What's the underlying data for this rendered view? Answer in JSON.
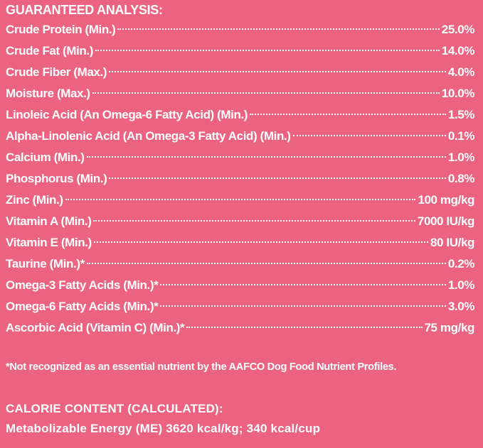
{
  "heading": "GUARANTEED ANALYSIS:",
  "rows": [
    [
      "Crude Protein (Min.)",
      "25.0%"
    ],
    [
      "Crude Fat (Min.)",
      "14.0%"
    ],
    [
      "Crude Fiber (Max.)",
      "4.0%"
    ],
    [
      "Moisture (Max.)",
      "10.0%"
    ],
    [
      "Linoleic Acid (An Omega-6 Fatty Acid) (Min.)",
      "1.5%"
    ],
    [
      "Alpha-Linolenic Acid (An Omega-3 Fatty Acid) (Min.)",
      "0.1%"
    ],
    [
      "Calcium (Min.)",
      "1.0%"
    ],
    [
      "Phosphorus (Min.)",
      "0.8%"
    ],
    [
      "Zinc (Min.)",
      "100 mg/kg"
    ],
    [
      "Vitamin A (Min.)",
      "7000 IU/kg"
    ],
    [
      "Vitamin E (Min.)",
      "80 IU/kg"
    ],
    [
      "Taurine (Min.)*",
      "0.2%"
    ],
    [
      "Omega-3 Fatty Acids (Min.)*",
      "1.0%"
    ],
    [
      "Omega-6 Fatty Acids (Min.)*",
      "3.0%"
    ],
    [
      "Ascorbic Acid (Vitamin C) (Min.)*",
      "75 mg/kg"
    ]
  ],
  "footnote": "*Not recognized as an essential nutrient by the AAFCO Dog Food Nutrient Profiles.",
  "calorie_heading": "CALORIE CONTENT (CALCULATED):",
  "calorie_text": "Metabolizable Energy (ME) 3620 kcal/kg; 340 kcal/cup"
}
